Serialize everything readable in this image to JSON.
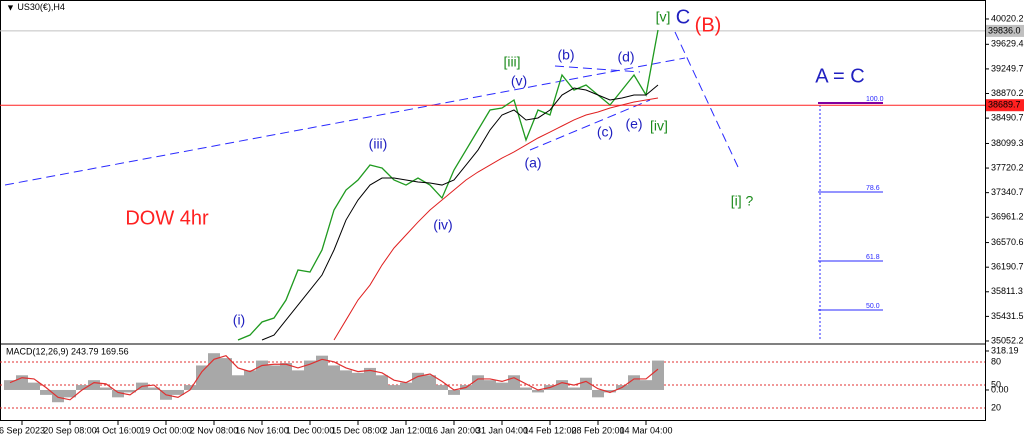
{
  "chart_data": [
    {
      "type": "line",
      "title": "US30(€),H4",
      "categories": [
        null,
        "6 Sep 2023",
        null,
        null,
        null,
        "20 Sep 08:00",
        null,
        null,
        null,
        "4 Oct 16:00",
        null,
        null,
        null,
        "19 Oct 00:00",
        null,
        null,
        null,
        "2 Nov 08:00",
        null,
        null,
        null,
        "16 Nov 16:00",
        null,
        null,
        null,
        "1 Dec 00:00",
        null,
        null,
        null,
        "15 Dec 08:00",
        null,
        null,
        null,
        "2 Jan 12:00",
        null,
        null,
        null,
        "16 Jan 20:00",
        null,
        null,
        null,
        "31 Jan 04:00",
        null,
        null,
        null,
        "14 Feb 12:00",
        null,
        null,
        null,
        "28 Feb 20:00",
        null,
        null,
        null,
        "14 Mar 04:00",
        null
      ],
      "series": [
        {
          "color": "#1f9a1f",
          "values": [
            null,
            null,
            null,
            null,
            null,
            null,
            null,
            null,
            null,
            null,
            null,
            null,
            null,
            null,
            null,
            null,
            null,
            null,
            null,
            35067,
            35144,
            35345,
            35406,
            35684,
            36147,
            36116,
            36456,
            37073,
            37381,
            37536,
            37767,
            37721,
            37536,
            37458,
            37566,
            37458,
            37258,
            37690,
            37998,
            38307,
            38616,
            38647,
            38770,
            38153,
            38616,
            38539,
            39156,
            38924,
            39001,
            38847,
            38693,
            38924,
            39156,
            38847,
            39850
          ]
        },
        {
          "color": "#000000",
          "values": [
            null,
            null,
            null,
            null,
            null,
            null,
            null,
            null,
            null,
            null,
            null,
            null,
            null,
            null,
            null,
            null,
            null,
            null,
            null,
            null,
            null,
            35067,
            35144,
            35375,
            35607,
            35838,
            36070,
            36456,
            36918,
            37227,
            37458,
            37566,
            37566,
            37536,
            37505,
            37489,
            37458,
            37536,
            37767,
            37998,
            38307,
            38539,
            38616,
            38462,
            38493,
            38616,
            38847,
            38955,
            38924,
            38847,
            38770,
            38801,
            38847,
            38847,
            39001
          ]
        },
        {
          "color": "#e02020",
          "values": [
            null,
            null,
            null,
            null,
            null,
            null,
            null,
            null,
            null,
            null,
            null,
            null,
            null,
            null,
            null,
            null,
            null,
            null,
            null,
            null,
            null,
            null,
            null,
            null,
            null,
            null,
            null,
            35067,
            35375,
            35684,
            35915,
            36224,
            36487,
            36687,
            36887,
            37073,
            37227,
            37381,
            37536,
            37659,
            37767,
            37875,
            37968,
            38076,
            38184,
            38276,
            38369,
            38462,
            38539,
            38585,
            38647,
            38693,
            38739,
            38770,
            38801
          ]
        }
      ],
      "ylim": [
        35021,
        40313
      ],
      "yticks": [
        40020.2,
        39629.4,
        39249.7,
        38870.2,
        38490.7,
        38099.3,
        37720.2,
        37340.7,
        36961.2,
        36570.6,
        36190.7,
        35811.3,
        35431.5,
        35052.2
      ],
      "price_lines": [
        {
          "value": 39836.0,
          "label": "39836.0",
          "color": "#c0c0c0"
        },
        {
          "value": 38689.7,
          "label": "38689.7",
          "color": "#ff2020"
        }
      ],
      "annotations": [
        {
          "text": "(i)",
          "color": "#2020c0"
        },
        {
          "text": "(iii)",
          "color": "#2020c0"
        },
        {
          "text": "(iv)",
          "color": "#2020c0"
        },
        {
          "text": "(v)",
          "color": "#2020c0"
        },
        {
          "text": "[iii]",
          "color": "#1a8a1a"
        },
        {
          "text": "(a)",
          "color": "#2020c0"
        },
        {
          "text": "(b)",
          "color": "#2020c0"
        },
        {
          "text": "(c)",
          "color": "#2020c0"
        },
        {
          "text": "(d)",
          "color": "#2020c0"
        },
        {
          "text": "(e)",
          "color": "#2020c0"
        },
        {
          "text": "[iv]",
          "color": "#1a8a1a"
        },
        {
          "text": "[v]",
          "color": "#1a8a1a"
        },
        {
          "text": "C",
          "color": "#2020c0"
        },
        {
          "text": "(B)",
          "color": "#ff2020"
        },
        {
          "text": "[i] ?",
          "color": "#1a8a1a"
        },
        {
          "text": "A = C",
          "color": "#2020c0"
        },
        {
          "text": "DOW 4hr",
          "color": "#ff2020"
        }
      ],
      "fib_levels": [
        "100.0",
        "78.6",
        "61.8",
        "50.0"
      ]
    },
    {
      "type": "macd",
      "title": "MACD(12,26,9) 243.79 169.56",
      "series": [
        {
          "color": "#a8a8a8",
          "values": [
            80,
            120,
            60,
            -40,
            -100,
            -60,
            40,
            80,
            20,
            -60,
            -20,
            60,
            20,
            -80,
            -40,
            40,
            200,
            300,
            260,
            120,
            160,
            240,
            200,
            220,
            160,
            240,
            280,
            200,
            160,
            140,
            180,
            120,
            40,
            60,
            140,
            120,
            40,
            -40,
            40,
            120,
            80,
            60,
            120,
            20,
            -20,
            40,
            80,
            20,
            100,
            -60,
            -20,
            40,
            120,
            80,
            240
          ]
        },
        {
          "color": "#e03030",
          "values": [
            60,
            100,
            90,
            20,
            -60,
            -80,
            0,
            60,
            50,
            -20,
            -40,
            30,
            40,
            -40,
            -60,
            0,
            150,
            250,
            280,
            180,
            150,
            200,
            210,
            210,
            180,
            210,
            250,
            230,
            180,
            150,
            160,
            140,
            80,
            60,
            110,
            130,
            70,
            0,
            20,
            90,
            90,
            70,
            100,
            50,
            0,
            20,
            60,
            40,
            70,
            10,
            -20,
            20,
            90,
            90,
            170
          ]
        }
      ],
      "ylim": [
        -245,
        367
      ],
      "yticks": [
        318.19,
        {
          "value": 0,
          "label": "0.00"
        }
      ],
      "levels": [
        80,
        50,
        20
      ],
      "levels_lim": [
        0,
        100
      ]
    }
  ]
}
